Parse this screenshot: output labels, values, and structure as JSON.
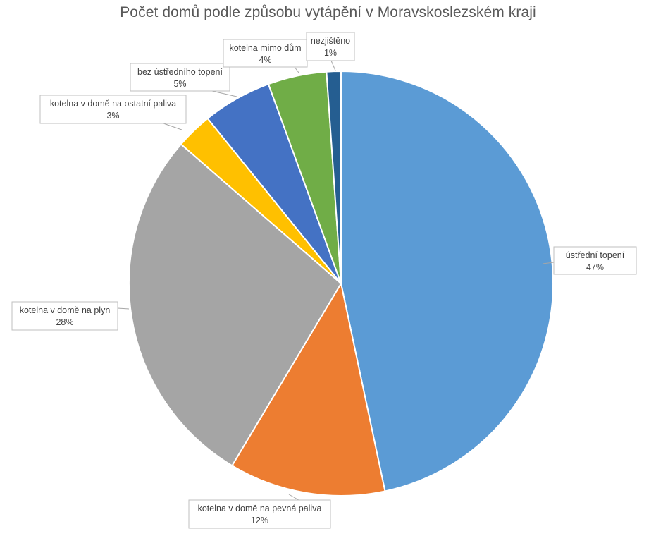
{
  "chart_data": {
    "type": "pie",
    "title": "Počet domů podle způsobu vytápění v Moravskoslezském kraji",
    "slices": [
      {
        "name": "ústřední topení",
        "value": 47,
        "pct_label": "47%",
        "color": "#5b9bd5"
      },
      {
        "name": "kotelna v domě na pevná paliva",
        "value": 12,
        "pct_label": "12%",
        "color": "#ed7d31"
      },
      {
        "name": "kotelna v domě na plyn",
        "value": 28,
        "pct_label": "28%",
        "color": "#a5a5a5"
      },
      {
        "name": "kotelna v domě na ostatní paliva",
        "value": 2.8,
        "pct_label": "3%",
        "color": "#ffc000"
      },
      {
        "name": "bez ústředního topení",
        "value": 5.3,
        "pct_label": "5%",
        "color": "#4472c4"
      },
      {
        "name": "kotelna mimo dům",
        "value": 4.5,
        "pct_label": "4%",
        "color": "#70ad47"
      },
      {
        "name": "nezjištěno",
        "value": 1.1,
        "pct_label": "1%",
        "color": "#255e91"
      }
    ],
    "legend": "none",
    "data_labels": "category name and percentage, outside end with callouts"
  }
}
